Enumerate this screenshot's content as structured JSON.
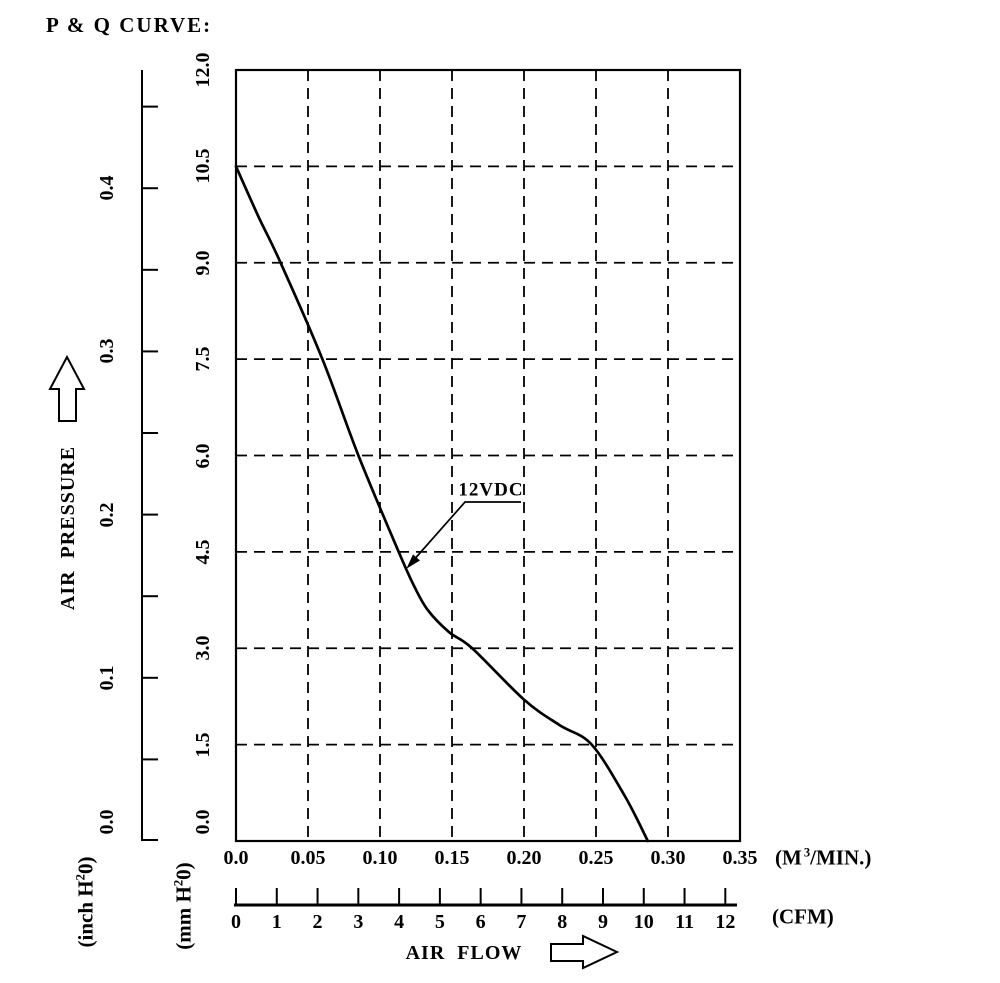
{
  "title": "P & Q CURVE:",
  "labels": {
    "curve_label": "12VDC",
    "pressure_axis_title": "AIR  PRESSURE",
    "flow_axis_title": "AIR  FLOW",
    "pressure_unit_mm": {
      "prefix": "(mm H",
      "sup": "2",
      "suffix": "0)"
    },
    "pressure_unit_inch": {
      "prefix": "(inch H",
      "sup": "2",
      "suffix": "0)"
    },
    "flow_unit_m3": {
      "prefix": "(M",
      "sup": "3",
      "suffix": "/MIN.)"
    },
    "flow_unit_cfm": "(CFM)"
  },
  "colors": {
    "ink": "#000000",
    "background": "#ffffff"
  },
  "chart_data": {
    "type": "line",
    "title": "P & Q CURVE:",
    "grid": "dashed",
    "legend_position": "inline-callout",
    "series": [
      {
        "name": "12VDC",
        "points": [
          [
            0.0,
            10.5
          ],
          [
            0.016,
            9.7
          ],
          [
            0.031,
            9.0
          ],
          [
            0.06,
            7.5
          ],
          [
            0.085,
            6.0
          ],
          [
            0.113,
            4.5
          ],
          [
            0.123,
            4.0
          ],
          [
            0.133,
            3.6
          ],
          [
            0.148,
            3.25
          ],
          [
            0.164,
            3.0
          ],
          [
            0.2,
            2.2
          ],
          [
            0.225,
            1.8
          ],
          [
            0.247,
            1.5
          ],
          [
            0.27,
            0.7
          ],
          [
            0.286,
            0.0
          ]
        ]
      }
    ],
    "x_axis": {
      "title": "AIR FLOW",
      "unit": "M3/MIN.",
      "range": [
        0,
        0.35
      ],
      "tick_labels": [
        "0.0",
        "0.05",
        "0.10",
        "0.15",
        "0.20",
        "0.25",
        "0.30",
        "0.35"
      ]
    },
    "x_axis_secondary": {
      "unit": "CFM",
      "range": [
        0,
        12
      ],
      "tick_labels": [
        "0",
        "1",
        "2",
        "3",
        "4",
        "5",
        "6",
        "7",
        "8",
        "9",
        "10",
        "11",
        "12"
      ]
    },
    "y_axis": {
      "title": "AIR PRESSURE",
      "unit": "mm H2O",
      "range": [
        0,
        12
      ],
      "tick_labels": [
        "0.0",
        "1.5",
        "3.0",
        "4.5",
        "6.0",
        "7.5",
        "9.0",
        "10.5",
        "12.0"
      ]
    },
    "y_axis_secondary": {
      "unit": "inch H2O",
      "range": [
        0,
        0.45
      ],
      "minor_tick_step": 0.05,
      "tick_labels": [
        "0.0",
        "0.1",
        "0.2",
        "0.3",
        "0.4"
      ]
    }
  }
}
